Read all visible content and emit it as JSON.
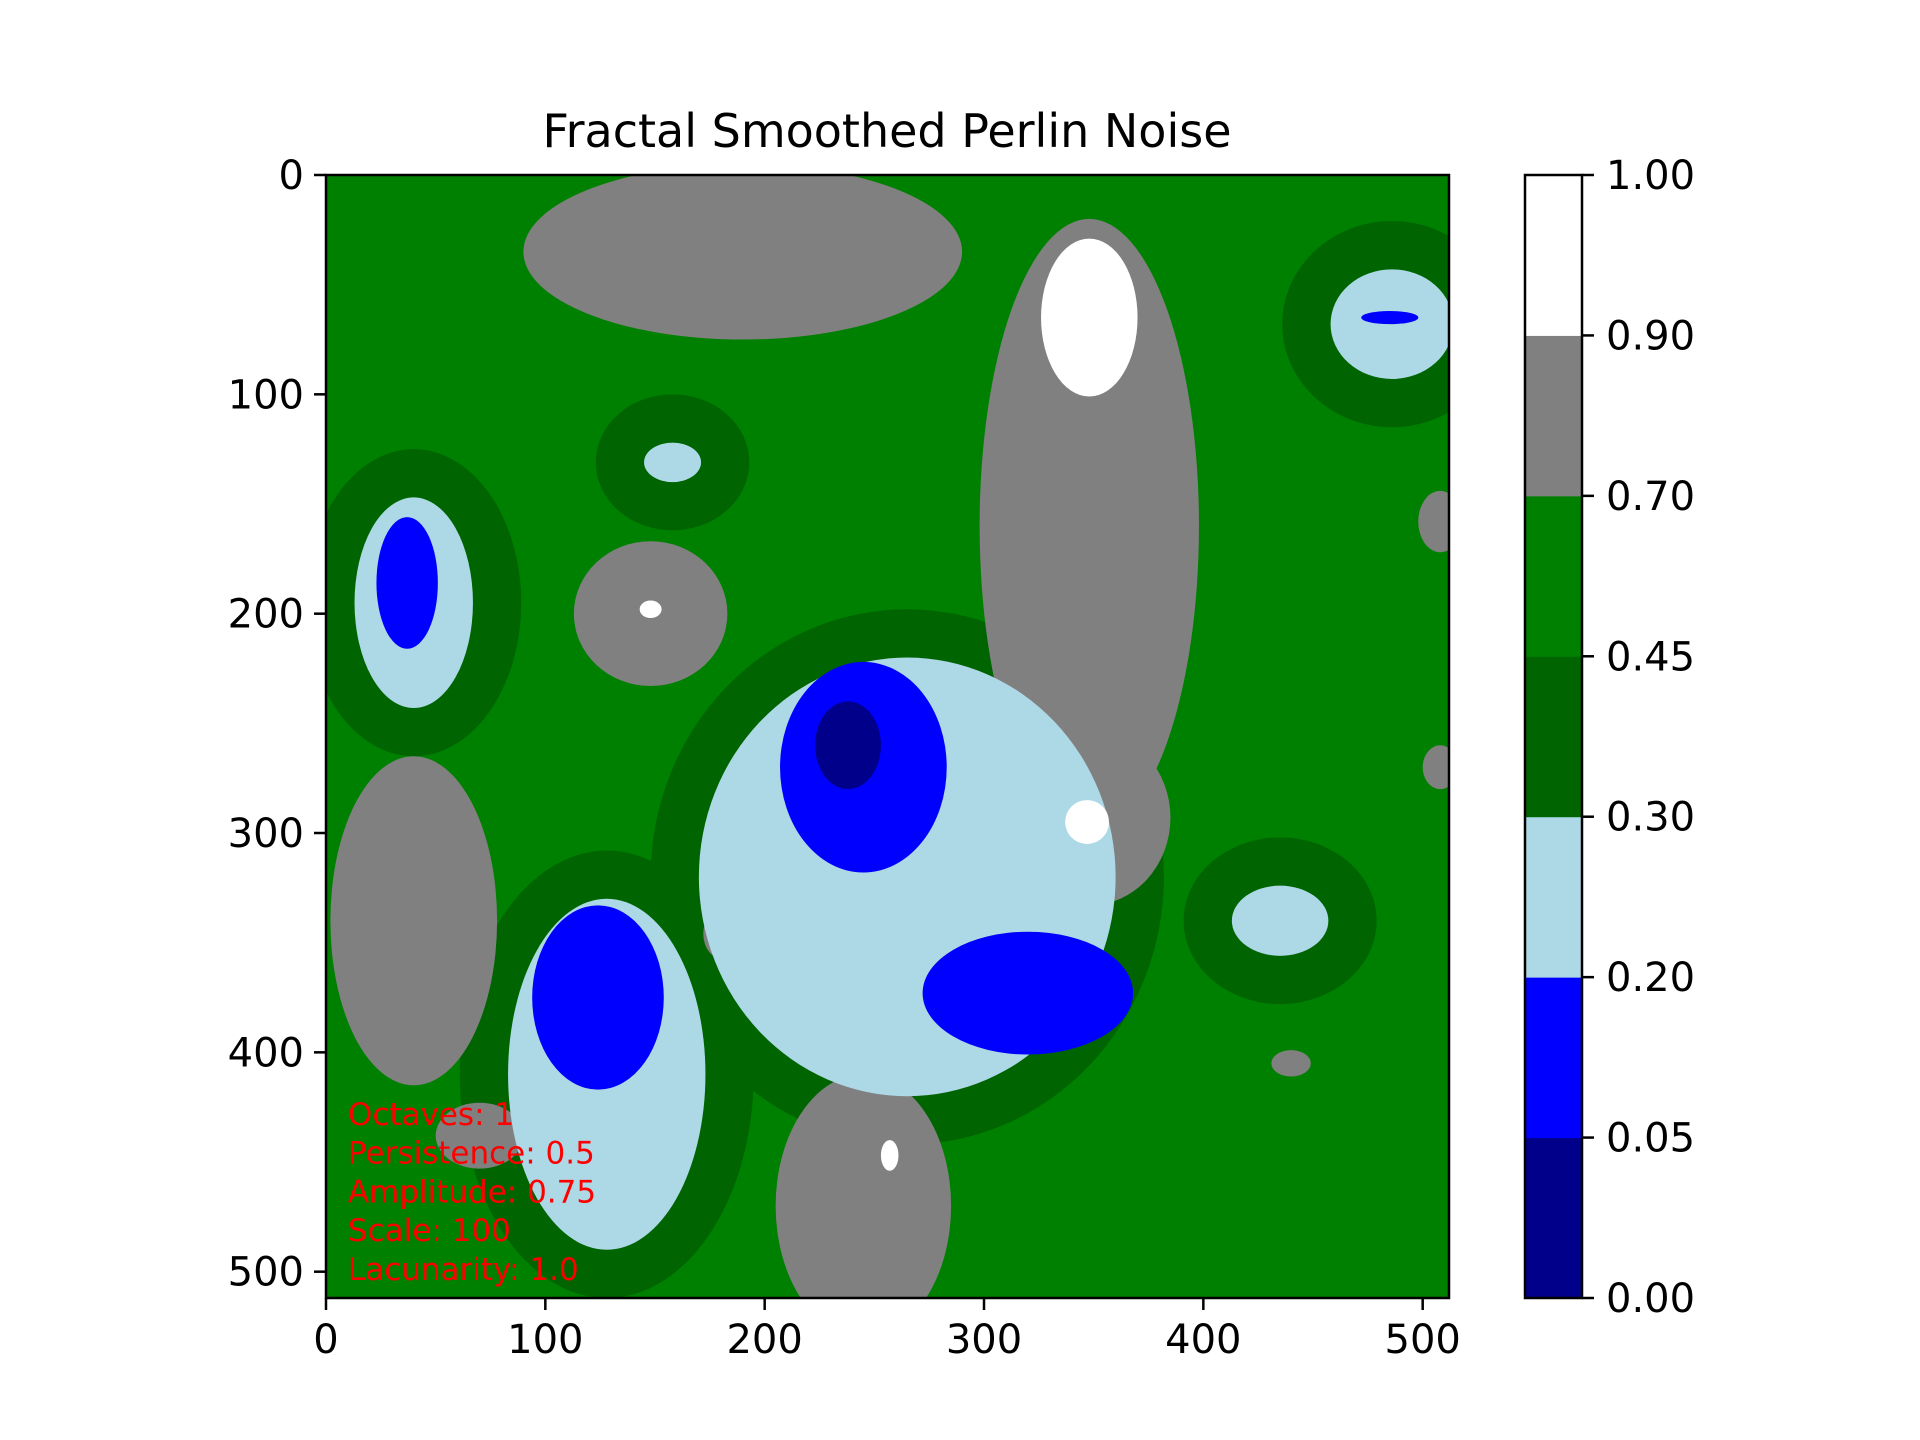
{
  "chart_data": {
    "type": "heatmap",
    "title": "Fractal Smoothed Perlin Noise",
    "xlabel": "",
    "ylabel": "",
    "xlim": [
      0,
      512
    ],
    "ylim": [
      512,
      0
    ],
    "x_ticks": [
      "0",
      "100",
      "200",
      "300",
      "400",
      "500"
    ],
    "y_ticks": [
      "0",
      "100",
      "200",
      "300",
      "400",
      "500"
    ],
    "grid": false,
    "colorbar": {
      "levels": [
        0.0,
        0.05,
        0.2,
        0.3,
        0.45,
        0.7,
        0.9,
        1.0
      ],
      "tick_labels": [
        "0.00",
        "0.05",
        "0.20",
        "0.30",
        "0.45",
        "0.70",
        "0.90",
        "1.00"
      ],
      "colors": [
        "#00008b",
        "#0000ff",
        "#add8e6",
        "#006400",
        "#008000",
        "#808080",
        "#ffffff"
      ]
    },
    "annotations": [
      "Octaves: 1",
      "Persistence: 0.5",
      "Amplitude: 0.75",
      "Scale: 100",
      "Lacunarity: 1.0"
    ],
    "annotation_color": "#ff0000",
    "features": [
      {
        "band": "white",
        "x": 348,
        "y": 65,
        "rx": 22,
        "ry": 36
      },
      {
        "band": "white",
        "x": 347,
        "y": 295,
        "rx": 10,
        "ry": 10
      },
      {
        "band": "white",
        "x": 148,
        "y": 198,
        "rx": 5,
        "ry": 4
      },
      {
        "band": "white",
        "x": 257,
        "y": 447,
        "rx": 4,
        "ry": 7
      },
      {
        "band": "gray",
        "x": 348,
        "y": 160,
        "rx": 50,
        "ry": 140
      },
      {
        "band": "gray",
        "x": 348,
        "y": 293,
        "rx": 37,
        "ry": 40
      },
      {
        "band": "gray",
        "x": 148,
        "y": 200,
        "rx": 35,
        "ry": 33
      },
      {
        "band": "gray",
        "x": 40,
        "y": 340,
        "rx": 38,
        "ry": 75
      },
      {
        "band": "gray",
        "x": 245,
        "y": 470,
        "rx": 40,
        "ry": 60
      },
      {
        "band": "gray",
        "x": 190,
        "y": 35,
        "rx": 100,
        "ry": 40
      },
      {
        "band": "gray",
        "x": 182,
        "y": 346,
        "rx": 10,
        "ry": 12
      },
      {
        "band": "gray",
        "x": 440,
        "y": 405,
        "rx": 9,
        "ry": 6
      },
      {
        "band": "gray",
        "x": 70,
        "y": 438,
        "rx": 20,
        "ry": 15
      },
      {
        "band": "gray",
        "x": 508,
        "y": 158,
        "rx": 10,
        "ry": 14
      },
      {
        "band": "gray",
        "x": 508,
        "y": 270,
        "rx": 8,
        "ry": 10
      },
      {
        "band": "lightblue",
        "x": 40,
        "y": 195,
        "rx": 27,
        "ry": 48
      },
      {
        "band": "lightblue",
        "x": 128,
        "y": 410,
        "rx": 45,
        "ry": 80
      },
      {
        "band": "lightblue",
        "x": 265,
        "y": 320,
        "rx": 95,
        "ry": 100
      },
      {
        "band": "lightblue",
        "x": 486,
        "y": 68,
        "rx": 28,
        "ry": 25
      },
      {
        "band": "lightblue",
        "x": 435,
        "y": 340,
        "rx": 22,
        "ry": 16
      },
      {
        "band": "lightblue",
        "x": 158,
        "y": 131,
        "rx": 13,
        "ry": 9
      },
      {
        "band": "blue",
        "x": 37,
        "y": 186,
        "rx": 14,
        "ry": 30
      },
      {
        "band": "blue",
        "x": 124,
        "y": 375,
        "rx": 30,
        "ry": 42
      },
      {
        "band": "blue",
        "x": 245,
        "y": 270,
        "rx": 38,
        "ry": 48
      },
      {
        "band": "blue",
        "x": 320,
        "y": 373,
        "rx": 48,
        "ry": 28
      },
      {
        "band": "blue",
        "x": 485,
        "y": 65,
        "rx": 13,
        "ry": 3
      },
      {
        "band": "darkblue",
        "x": 238,
        "y": 260,
        "rx": 15,
        "ry": 20
      }
    ]
  }
}
